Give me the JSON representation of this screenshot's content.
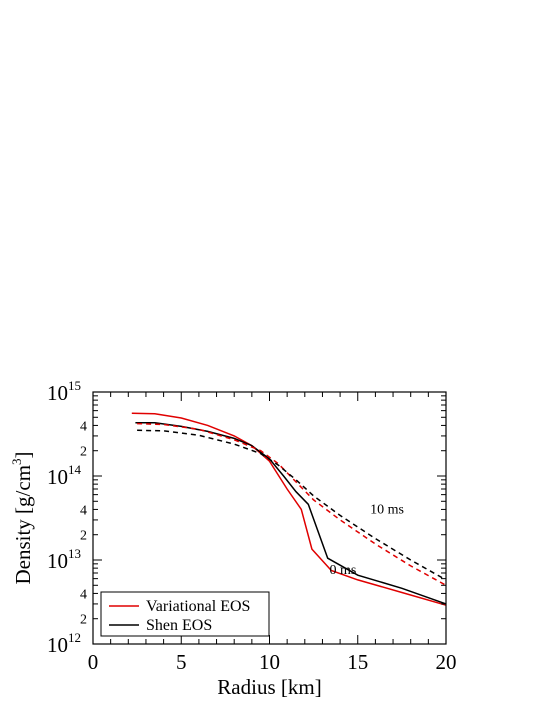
{
  "chart_data": {
    "type": "line",
    "xlabel": "Radius [km]",
    "ylabel_main": "Density [g/cm",
    "ylabel_sup": "3",
    "ylabel_end": "]",
    "xlim": [
      0,
      20
    ],
    "ylim": [
      1000000000000.0,
      1000000000000000.0
    ],
    "y_scale": "log",
    "x_ticks": [
      {
        "value": 0,
        "label": "0"
      },
      {
        "value": 5,
        "label": "5"
      },
      {
        "value": 10,
        "label": "10"
      },
      {
        "value": 15,
        "label": "15"
      },
      {
        "value": 20,
        "label": "20"
      }
    ],
    "y_major_ticks": [
      {
        "value": 1000000000000.0,
        "base": "10",
        "exp": "12"
      },
      {
        "value": 10000000000000.0,
        "base": "10",
        "exp": "13"
      },
      {
        "value": 100000000000000.0,
        "base": "10",
        "exp": "14"
      },
      {
        "value": 1000000000000000.0,
        "base": "10",
        "exp": "15"
      }
    ],
    "y_minor_labels": [
      {
        "value": 2000000000000.0,
        "label": "2"
      },
      {
        "value": 4000000000000.0,
        "label": "4"
      },
      {
        "value": 20000000000000.0,
        "label": "2"
      },
      {
        "value": 40000000000000.0,
        "label": "4"
      },
      {
        "value": 200000000000000.0,
        "label": "2"
      },
      {
        "value": 400000000000000.0,
        "label": "4"
      }
    ],
    "annotations": [
      {
        "text": "10 ms",
        "x": 15.7,
        "y": 36000000000000.0
      },
      {
        "text": "0 ms",
        "x": 13.4,
        "y": 6800000000000.0
      }
    ],
    "legend": {
      "placement": "bottom-left",
      "entries": [
        {
          "label": "Variational EOS",
          "color": "#e00000"
        },
        {
          "label": "Shen EOS",
          "color": "#000000"
        }
      ]
    },
    "series": [
      {
        "model": "Variational EOS",
        "time": "0 ms",
        "color": "#e00000",
        "dashed": false,
        "x": [
          2.2,
          3.5,
          5,
          6.5,
          8,
          9,
          10,
          11,
          11.8,
          12.4,
          13.5,
          15,
          17.5,
          20
        ],
        "y": [
          560000000000000.0,
          550000000000000.0,
          490000000000000.0,
          400000000000000.0,
          300000000000000.0,
          230000000000000.0,
          150000000000000.0,
          70000000000000.0,
          40000000000000.0,
          13500000000000.0,
          7500000000000.0,
          5800000000000.0,
          4100000000000.0,
          2900000000000.0
        ]
      },
      {
        "model": "Shen EOS",
        "time": "0 ms",
        "color": "#000000",
        "dashed": false,
        "x": [
          2.4,
          3.5,
          5,
          6.5,
          8,
          9,
          10,
          10.8,
          11.5,
          12.2,
          13.3,
          15,
          17.5,
          20
        ],
        "y": [
          430000000000000.0,
          430000000000000.0,
          390000000000000.0,
          340000000000000.0,
          280000000000000.0,
          230000000000000.0,
          160000000000000.0,
          100000000000000.0,
          65000000000000.0,
          46000000000000.0,
          10500000000000.0,
          6600000000000.0,
          4600000000000.0,
          3000000000000.0
        ]
      },
      {
        "model": "Variational EOS",
        "time": "10 ms",
        "color": "#e00000",
        "dashed": true,
        "x": [
          2.5,
          4,
          6,
          8,
          9.5,
          10.5,
          11.5,
          12.5,
          14,
          16,
          18,
          20
        ],
        "y": [
          420000000000000.0,
          410000000000000.0,
          360000000000000.0,
          270000000000000.0,
          200000000000000.0,
          140000000000000.0,
          85000000000000.0,
          52000000000000.0,
          30000000000000.0,
          15500000000000.0,
          8500000000000.0,
          5000000000000.0
        ]
      },
      {
        "model": "Shen EOS",
        "time": "10 ms",
        "color": "#000000",
        "dashed": true,
        "x": [
          2.5,
          4,
          6,
          8,
          9.5,
          10.5,
          11.5,
          12.5,
          14,
          16,
          18,
          20
        ],
        "y": [
          350000000000000.0,
          345000000000000.0,
          305000000000000.0,
          240000000000000.0,
          185000000000000.0,
          135000000000000.0,
          90000000000000.0,
          58000000000000.0,
          34000000000000.0,
          18000000000000.0,
          10000000000000.0,
          5800000000000.0
        ]
      }
    ]
  }
}
